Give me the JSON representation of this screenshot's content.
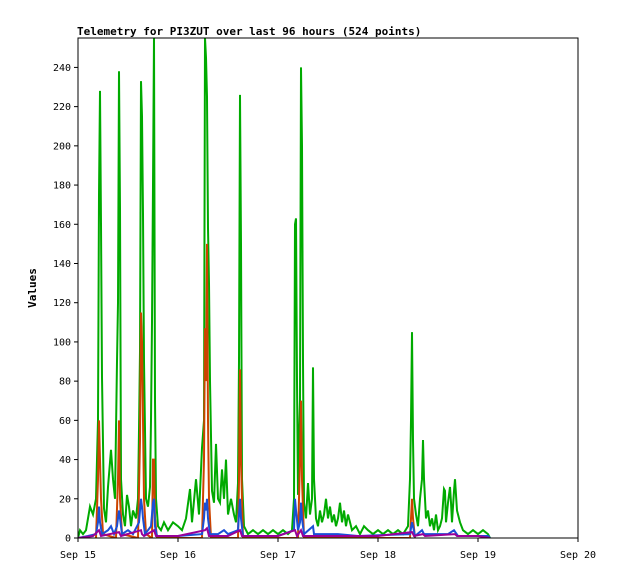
{
  "chart_data": {
    "type": "line",
    "title": "Telemetry for PI3ZUT over last 96 hours (524 points)",
    "xlabel": "",
    "ylabel": "Values",
    "xlim": [
      "Sep 15",
      "Sep 20"
    ],
    "ylim": [
      0,
      255
    ],
    "x_ticks": [
      "Sep 15",
      "Sep 16",
      "Sep 17",
      "Sep 18",
      "Sep 19",
      "Sep 20"
    ],
    "y_ticks": [
      0,
      20,
      40,
      60,
      80,
      100,
      120,
      140,
      160,
      180,
      200,
      220,
      240
    ],
    "grid": false,
    "legend": "none",
    "colors": [
      "#00aa00",
      "#cc4400",
      "#1a4fd6",
      "#990099"
    ],
    "series": [
      {
        "color": "#00aa00",
        "points": [
          [
            0.0,
            0
          ],
          [
            0.02,
            4
          ],
          [
            0.05,
            2
          ],
          [
            0.08,
            4
          ],
          [
            0.12,
            16
          ],
          [
            0.15,
            12
          ],
          [
            0.18,
            20
          ],
          [
            0.2,
            60
          ],
          [
            0.21,
            175
          ],
          [
            0.22,
            228
          ],
          [
            0.23,
            160
          ],
          [
            0.24,
            82
          ],
          [
            0.26,
            15
          ],
          [
            0.28,
            8
          ],
          [
            0.3,
            26
          ],
          [
            0.33,
            45
          ],
          [
            0.35,
            30
          ],
          [
            0.37,
            20
          ],
          [
            0.39,
            90
          ],
          [
            0.4,
            120
          ],
          [
            0.41,
            238
          ],
          [
            0.42,
            168
          ],
          [
            0.43,
            30
          ],
          [
            0.45,
            12
          ],
          [
            0.47,
            6
          ],
          [
            0.49,
            22
          ],
          [
            0.51,
            16
          ],
          [
            0.53,
            6
          ],
          [
            0.55,
            14
          ],
          [
            0.58,
            10
          ],
          [
            0.6,
            20
          ],
          [
            0.61,
            55
          ],
          [
            0.62,
            95
          ],
          [
            0.63,
            233
          ],
          [
            0.64,
            215
          ],
          [
            0.65,
            165
          ],
          [
            0.66,
            90
          ],
          [
            0.68,
            20
          ],
          [
            0.7,
            16
          ],
          [
            0.72,
            26
          ],
          [
            0.73,
            60
          ],
          [
            0.74,
            110
          ],
          [
            0.75,
            180
          ],
          [
            0.76,
            255
          ],
          [
            0.77,
            70
          ],
          [
            0.78,
            20
          ],
          [
            0.8,
            6
          ],
          [
            0.83,
            4
          ],
          [
            0.86,
            8
          ],
          [
            0.9,
            4
          ],
          [
            0.95,
            8
          ],
          [
            1.0,
            6
          ],
          [
            1.04,
            4
          ],
          [
            1.08,
            10
          ],
          [
            1.12,
            25
          ],
          [
            1.14,
            8
          ],
          [
            1.18,
            30
          ],
          [
            1.21,
            12
          ],
          [
            1.24,
            46
          ],
          [
            1.26,
            60
          ],
          [
            1.27,
            255
          ],
          [
            1.28,
            245
          ],
          [
            1.29,
            225
          ],
          [
            1.3,
            158
          ],
          [
            1.31,
            130
          ],
          [
            1.32,
            80
          ],
          [
            1.34,
            24
          ],
          [
            1.36,
            18
          ],
          [
            1.38,
            48
          ],
          [
            1.4,
            20
          ],
          [
            1.42,
            18
          ],
          [
            1.44,
            35
          ],
          [
            1.46,
            20
          ],
          [
            1.48,
            40
          ],
          [
            1.5,
            12
          ],
          [
            1.53,
            20
          ],
          [
            1.56,
            12
          ],
          [
            1.58,
            8
          ],
          [
            1.6,
            28
          ],
          [
            1.61,
            90
          ],
          [
            1.62,
            226
          ],
          [
            1.63,
            150
          ],
          [
            1.64,
            30
          ],
          [
            1.66,
            6
          ],
          [
            1.7,
            2
          ],
          [
            1.75,
            4
          ],
          [
            1.8,
            2
          ],
          [
            1.85,
            4
          ],
          [
            1.9,
            2
          ],
          [
            1.95,
            4
          ],
          [
            2.0,
            2
          ],
          [
            2.05,
            4
          ],
          [
            2.1,
            2
          ],
          [
            2.14,
            4
          ],
          [
            2.16,
            20
          ],
          [
            2.17,
            160
          ],
          [
            2.18,
            163
          ],
          [
            2.19,
            80
          ],
          [
            2.2,
            22
          ],
          [
            2.21,
            50
          ],
          [
            2.22,
            70
          ],
          [
            2.23,
            240
          ],
          [
            2.24,
            200
          ],
          [
            2.25,
            90
          ],
          [
            2.26,
            18
          ],
          [
            2.28,
            10
          ],
          [
            2.3,
            28
          ],
          [
            2.32,
            12
          ],
          [
            2.34,
            20
          ],
          [
            2.35,
            87
          ],
          [
            2.36,
            30
          ],
          [
            2.38,
            10
          ],
          [
            2.4,
            6
          ],
          [
            2.42,
            14
          ],
          [
            2.44,
            8
          ],
          [
            2.46,
            12
          ],
          [
            2.48,
            20
          ],
          [
            2.5,
            10
          ],
          [
            2.52,
            16
          ],
          [
            2.54,
            8
          ],
          [
            2.56,
            12
          ],
          [
            2.58,
            6
          ],
          [
            2.6,
            10
          ],
          [
            2.62,
            18
          ],
          [
            2.64,
            8
          ],
          [
            2.66,
            14
          ],
          [
            2.68,
            6
          ],
          [
            2.7,
            12
          ],
          [
            2.72,
            8
          ],
          [
            2.74,
            4
          ],
          [
            2.78,
            6
          ],
          [
            2.82,
            2
          ],
          [
            2.86,
            6
          ],
          [
            2.9,
            4
          ],
          [
            2.95,
            2
          ],
          [
            3.0,
            4
          ],
          [
            3.05,
            2
          ],
          [
            3.1,
            4
          ],
          [
            3.15,
            2
          ],
          [
            3.2,
            4
          ],
          [
            3.25,
            2
          ],
          [
            3.3,
            6
          ],
          [
            3.32,
            30
          ],
          [
            3.33,
            60
          ],
          [
            3.34,
            105
          ],
          [
            3.35,
            50
          ],
          [
            3.36,
            20
          ],
          [
            3.38,
            12
          ],
          [
            3.4,
            6
          ],
          [
            3.42,
            20
          ],
          [
            3.44,
            30
          ],
          [
            3.45,
            50
          ],
          [
            3.46,
            30
          ],
          [
            3.48,
            10
          ],
          [
            3.5,
            14
          ],
          [
            3.52,
            6
          ],
          [
            3.54,
            10
          ],
          [
            3.56,
            4
          ],
          [
            3.58,
            12
          ],
          [
            3.6,
            4
          ],
          [
            3.62,
            6
          ],
          [
            3.64,
            10
          ],
          [
            3.66,
            25
          ],
          [
            3.67,
            24
          ],
          [
            3.68,
            8
          ],
          [
            3.7,
            18
          ],
          [
            3.72,
            26
          ],
          [
            3.73,
            18
          ],
          [
            3.74,
            8
          ],
          [
            3.76,
            24
          ],
          [
            3.77,
            30
          ],
          [
            3.78,
            22
          ],
          [
            3.79,
            14
          ],
          [
            3.8,
            12
          ],
          [
            3.82,
            8
          ],
          [
            3.85,
            4
          ],
          [
            3.9,
            2
          ],
          [
            3.95,
            4
          ],
          [
            4.0,
            2
          ],
          [
            4.05,
            4
          ],
          [
            4.1,
            2
          ],
          [
            4.12,
            0
          ]
        ]
      },
      {
        "color": "#cc4400",
        "points": [
          [
            0.18,
            0
          ],
          [
            0.2,
            30
          ],
          [
            0.21,
            60
          ],
          [
            0.22,
            40
          ],
          [
            0.23,
            20
          ],
          [
            0.25,
            2
          ],
          [
            0.38,
            0
          ],
          [
            0.4,
            30
          ],
          [
            0.41,
            60
          ],
          [
            0.42,
            20
          ],
          [
            0.44,
            2
          ],
          [
            0.6,
            0
          ],
          [
            0.62,
            50
          ],
          [
            0.63,
            115
          ],
          [
            0.64,
            100
          ],
          [
            0.65,
            60
          ],
          [
            0.66,
            20
          ],
          [
            0.68,
            2
          ],
          [
            0.74,
            0
          ],
          [
            0.75,
            40
          ],
          [
            0.76,
            40
          ],
          [
            0.77,
            10
          ],
          [
            0.79,
            0
          ],
          [
            1.24,
            0
          ],
          [
            1.26,
            40
          ],
          [
            1.27,
            107
          ],
          [
            1.28,
            80
          ],
          [
            1.29,
            150
          ],
          [
            1.3,
            60
          ],
          [
            1.31,
            20
          ],
          [
            1.33,
            0
          ],
          [
            1.6,
            0
          ],
          [
            1.61,
            30
          ],
          [
            1.62,
            86
          ],
          [
            1.63,
            40
          ],
          [
            1.65,
            0
          ],
          [
            2.2,
            0
          ],
          [
            2.22,
            40
          ],
          [
            2.23,
            70
          ],
          [
            2.24,
            30
          ],
          [
            2.26,
            0
          ],
          [
            3.32,
            0
          ],
          [
            3.34,
            20
          ],
          [
            3.35,
            10
          ],
          [
            3.37,
            0
          ]
        ]
      },
      {
        "color": "#1a4fd6",
        "points": [
          [
            0.0,
            0
          ],
          [
            0.1,
            1
          ],
          [
            0.18,
            2
          ],
          [
            0.2,
            8
          ],
          [
            0.21,
            16
          ],
          [
            0.22,
            8
          ],
          [
            0.24,
            2
          ],
          [
            0.3,
            4
          ],
          [
            0.33,
            6
          ],
          [
            0.36,
            2
          ],
          [
            0.39,
            6
          ],
          [
            0.41,
            14
          ],
          [
            0.42,
            10
          ],
          [
            0.44,
            2
          ],
          [
            0.5,
            4
          ],
          [
            0.55,
            2
          ],
          [
            0.61,
            8
          ],
          [
            0.63,
            20
          ],
          [
            0.64,
            16
          ],
          [
            0.65,
            10
          ],
          [
            0.67,
            2
          ],
          [
            0.73,
            6
          ],
          [
            0.75,
            18
          ],
          [
            0.76,
            20
          ],
          [
            0.77,
            6
          ],
          [
            0.79,
            1
          ],
          [
            1.0,
            1
          ],
          [
            1.24,
            2
          ],
          [
            1.26,
            10
          ],
          [
            1.27,
            18
          ],
          [
            1.28,
            14
          ],
          [
            1.29,
            20
          ],
          [
            1.3,
            10
          ],
          [
            1.32,
            2
          ],
          [
            1.4,
            2
          ],
          [
            1.46,
            4
          ],
          [
            1.5,
            2
          ],
          [
            1.6,
            4
          ],
          [
            1.62,
            20
          ],
          [
            1.63,
            10
          ],
          [
            1.65,
            1
          ],
          [
            2.0,
            1
          ],
          [
            2.16,
            4
          ],
          [
            2.17,
            20
          ],
          [
            2.18,
            14
          ],
          [
            2.2,
            4
          ],
          [
            2.22,
            8
          ],
          [
            2.23,
            18
          ],
          [
            2.24,
            10
          ],
          [
            2.26,
            2
          ],
          [
            2.35,
            6
          ],
          [
            2.36,
            2
          ],
          [
            2.45,
            2
          ],
          [
            2.6,
            2
          ],
          [
            2.8,
            1
          ],
          [
            3.32,
            2
          ],
          [
            3.34,
            8
          ],
          [
            3.35,
            6
          ],
          [
            3.37,
            1
          ],
          [
            3.44,
            4
          ],
          [
            3.46,
            2
          ],
          [
            3.7,
            2
          ],
          [
            3.76,
            4
          ],
          [
            3.8,
            1
          ],
          [
            4.1,
            1
          ],
          [
            4.12,
            0
          ]
        ]
      },
      {
        "color": "#990099",
        "points": [
          [
            0.0,
            0
          ],
          [
            0.15,
            1
          ],
          [
            0.21,
            4
          ],
          [
            0.23,
            1
          ],
          [
            0.41,
            3
          ],
          [
            0.43,
            1
          ],
          [
            0.63,
            4
          ],
          [
            0.64,
            2
          ],
          [
            0.66,
            1
          ],
          [
            0.76,
            4
          ],
          [
            0.78,
            1
          ],
          [
            1.0,
            1
          ],
          [
            1.27,
            4
          ],
          [
            1.29,
            5
          ],
          [
            1.31,
            1
          ],
          [
            1.5,
            1
          ],
          [
            1.62,
            4
          ],
          [
            1.64,
            1
          ],
          [
            2.0,
            1
          ],
          [
            2.17,
            4
          ],
          [
            2.19,
            1
          ],
          [
            2.23,
            4
          ],
          [
            2.25,
            1
          ],
          [
            2.5,
            1
          ],
          [
            3.0,
            1
          ],
          [
            3.34,
            3
          ],
          [
            3.36,
            1
          ],
          [
            3.45,
            2
          ],
          [
            3.47,
            1
          ],
          [
            3.77,
            2
          ],
          [
            3.79,
            1
          ],
          [
            4.0,
            1
          ],
          [
            4.12,
            0
          ]
        ]
      }
    ]
  }
}
